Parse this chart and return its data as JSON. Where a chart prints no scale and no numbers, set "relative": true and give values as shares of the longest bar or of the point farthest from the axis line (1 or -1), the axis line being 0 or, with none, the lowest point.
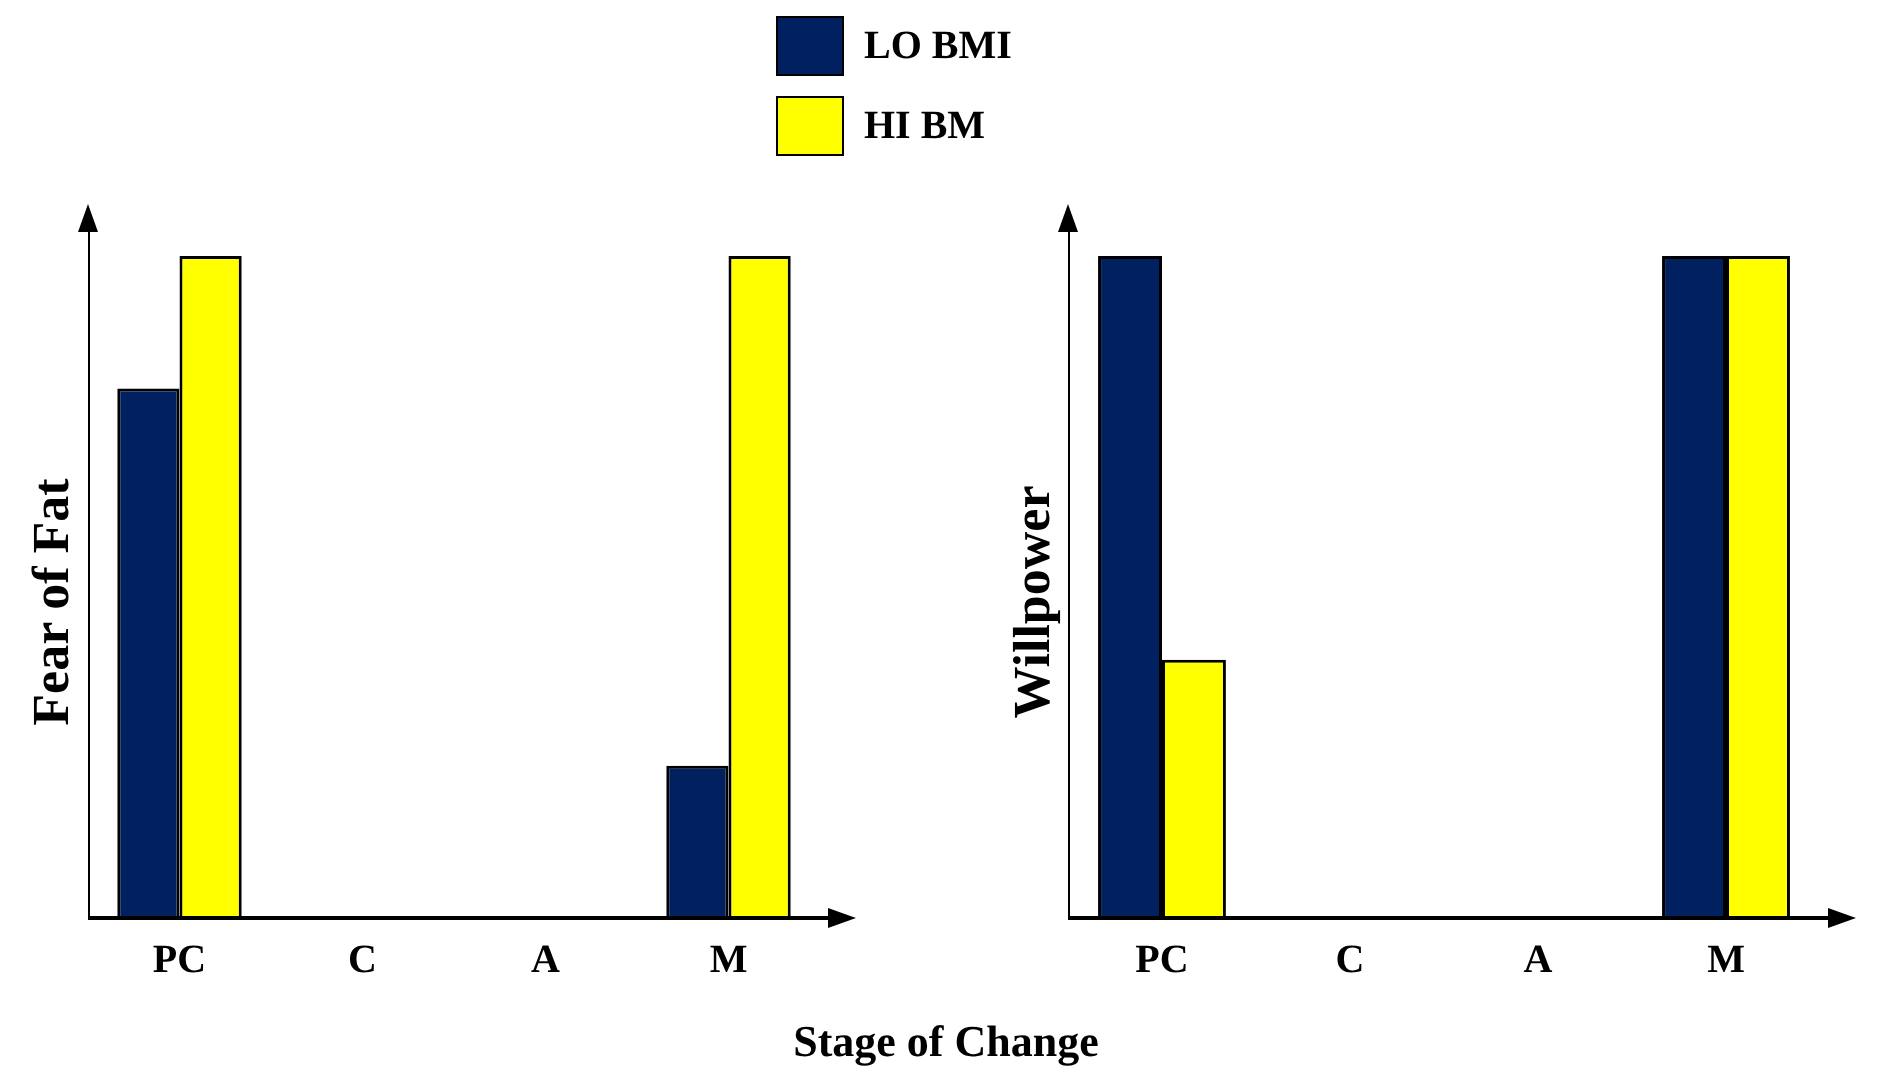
{
  "chart_data": [
    {
      "type": "bar",
      "ylabel": "Fear of Fat",
      "xlabel": "Stage of Change",
      "categories": [
        "PC",
        "C",
        "A",
        "M"
      ],
      "relative": true,
      "legend": "top",
      "series": [
        {
          "name": "LO BMI",
          "color": "#002060",
          "values": [
            0.8,
            null,
            null,
            0.23
          ]
        },
        {
          "name": "HI BM",
          "color": "#ffff00",
          "values": [
            1,
            null,
            null,
            1
          ]
        }
      ]
    },
    {
      "type": "bar",
      "ylabel": "Willpower",
      "categories": [
        "PC",
        "C",
        "A",
        "M"
      ],
      "relative": true,
      "series": [
        {
          "color": "#002060",
          "values": [
            1,
            null,
            null,
            1
          ]
        },
        {
          "color": "#ffff00",
          "values": [
            0.39,
            null,
            null,
            1
          ]
        }
      ]
    }
  ]
}
